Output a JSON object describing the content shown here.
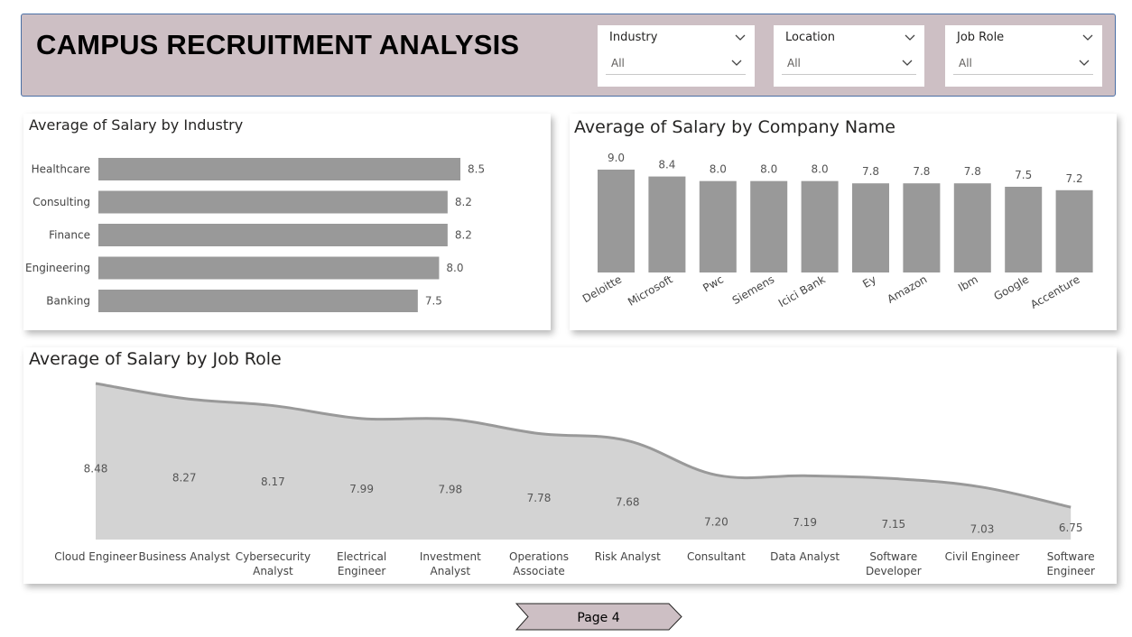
{
  "header": {
    "title": "CAMPUS RECRUITMENT ANALYSIS"
  },
  "filters": [
    {
      "label": "Industry",
      "value": "All"
    },
    {
      "label": "Location",
      "value": "All"
    },
    {
      "label": "Job Role",
      "value": "All"
    }
  ],
  "colors": {
    "banner": "#cdbfc4",
    "bar": "#999999",
    "area_fill": "#d3d3d3",
    "area_line": "#999999",
    "page_button": "#cdbfc4"
  },
  "chart_data": [
    {
      "type": "bar",
      "orientation": "horizontal",
      "title": "Average of Salary by Industry",
      "categories": [
        "Healthcare",
        "Consulting",
        "Finance",
        "Engineering",
        "Banking"
      ],
      "values": [
        8.5,
        8.2,
        8.2,
        8.0,
        7.5
      ],
      "value_labels": [
        "8.5",
        "8.2",
        "8.2",
        "8.0",
        "7.5"
      ],
      "xlim": [
        0,
        8.5
      ]
    },
    {
      "type": "bar",
      "orientation": "vertical",
      "title": "Average of Salary by Company Name",
      "categories": [
        "Deloitte",
        "Microsoft",
        "Pwc",
        "Siemens",
        "Icici Bank",
        "Ey",
        "Amazon",
        "Ibm",
        "Google",
        "Accenture"
      ],
      "values": [
        9.0,
        8.4,
        8.0,
        8.0,
        8.0,
        7.8,
        7.8,
        7.8,
        7.5,
        7.2
      ],
      "value_labels": [
        "9.0",
        "8.4",
        "8.0",
        "8.0",
        "8.0",
        "7.8",
        "7.8",
        "7.8",
        "7.5",
        "7.2"
      ],
      "ylim": [
        0,
        9.0
      ]
    },
    {
      "type": "area",
      "title": "Average of Salary by Job Role",
      "categories": [
        "Cloud Engineer",
        "Business Analyst",
        "Cybersecurity Analyst",
        "Electrical Engineer",
        "Investment Analyst",
        "Operations Associate",
        "Risk Analyst",
        "Consultant",
        "Data Analyst",
        "Software Developer",
        "Civil Engineer",
        "Software Engineer"
      ],
      "values": [
        8.48,
        8.27,
        8.17,
        7.99,
        7.98,
        7.78,
        7.68,
        7.2,
        7.19,
        7.15,
        7.03,
        6.75
      ],
      "value_labels": [
        "8.48",
        "8.27",
        "8.17",
        "7.99",
        "7.98",
        "7.78",
        "7.68",
        "7.20",
        "7.19",
        "7.15",
        "7.03",
        "6.75"
      ],
      "ylim": [
        6.6,
        8.48
      ]
    }
  ],
  "footer": {
    "page_label": "Page 4"
  }
}
